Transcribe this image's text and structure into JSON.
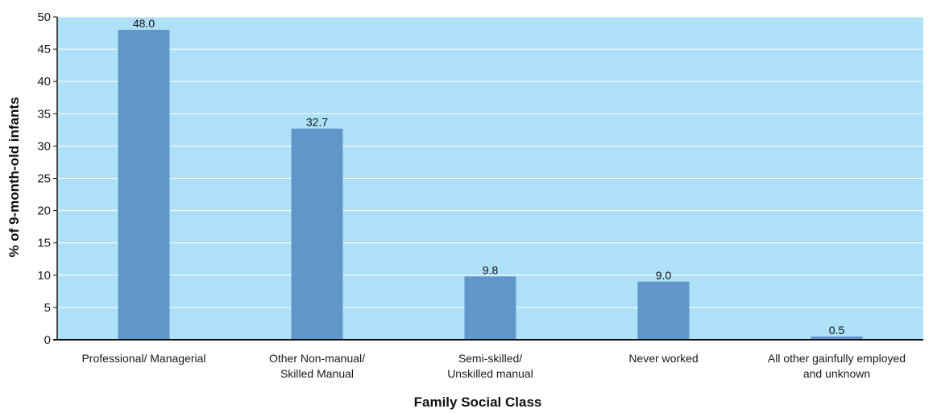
{
  "chart_data": {
    "type": "bar",
    "title": "",
    "xlabel": "Family Social Class",
    "ylabel": "% of 9-month-old infants",
    "ylim": [
      0,
      50
    ],
    "yticks": [
      0,
      5,
      10,
      15,
      20,
      25,
      30,
      35,
      40,
      45,
      50
    ],
    "categories": [
      [
        "Professional/ Managerial"
      ],
      [
        "Other Non-manual/",
        "Skilled Manual"
      ],
      [
        "Semi-skilled/",
        "Unskilled manual"
      ],
      [
        "Never worked"
      ],
      [
        "All other gainfully employed",
        "and unknown"
      ]
    ],
    "values": [
      48.0,
      32.7,
      9.8,
      9.0,
      0.5
    ],
    "value_labels": [
      "48.0",
      "32.7",
      "9.8",
      "9.0",
      "0.5"
    ],
    "grid": true,
    "colors": {
      "plot_background": "#aee0f7",
      "bar": "#6096c9",
      "gridline": "#ffffff",
      "axis": "#111111"
    }
  }
}
